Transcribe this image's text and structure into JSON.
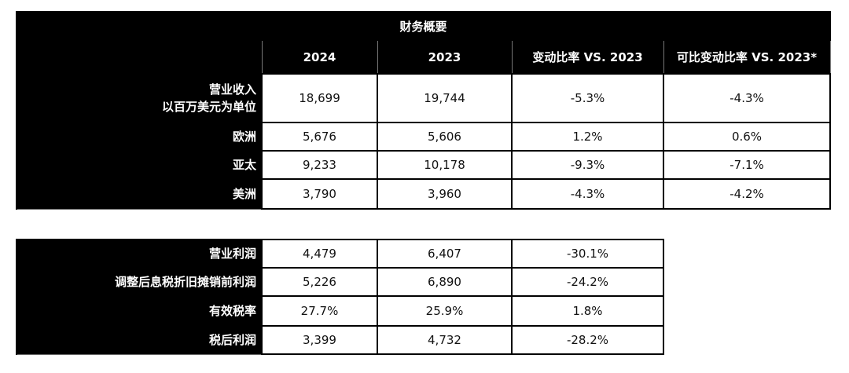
{
  "table1": {
    "title": "财务概要",
    "headers": [
      "2024",
      "2023",
      "变动比率 VS. 2023",
      "可比变动比率 VS. 2023*"
    ],
    "rows": [
      {
        "label": "营业收入",
        "sublabel": "以百万美元为单位",
        "values": [
          "18,699",
          "19,744",
          "-5.3%",
          "-4.3%"
        ]
      },
      {
        "label": "欧洲",
        "values": [
          "5,676",
          "5,606",
          "1.2%",
          "0.6%"
        ]
      },
      {
        "label": "亚太",
        "values": [
          "9,233",
          "10,178",
          "-9.3%",
          "-7.1%"
        ]
      },
      {
        "label": "美洲",
        "values": [
          "3,790",
          "3,960",
          "-4.3%",
          "-4.2%"
        ]
      }
    ]
  },
  "table2": {
    "rows": [
      {
        "label": "营业利润",
        "values": [
          "4,479",
          "6,407",
          "-30.1%"
        ]
      },
      {
        "label": "调整后息税折旧摊销前利润",
        "values": [
          "5,226",
          "6,890",
          "-24.2%"
        ]
      },
      {
        "label": "有效税率",
        "values": [
          "27.7%",
          "25.9%",
          "1.8%"
        ]
      },
      {
        "label": "税后利润",
        "values": [
          "3,399",
          "4,732",
          "-28.2%"
        ]
      }
    ]
  }
}
